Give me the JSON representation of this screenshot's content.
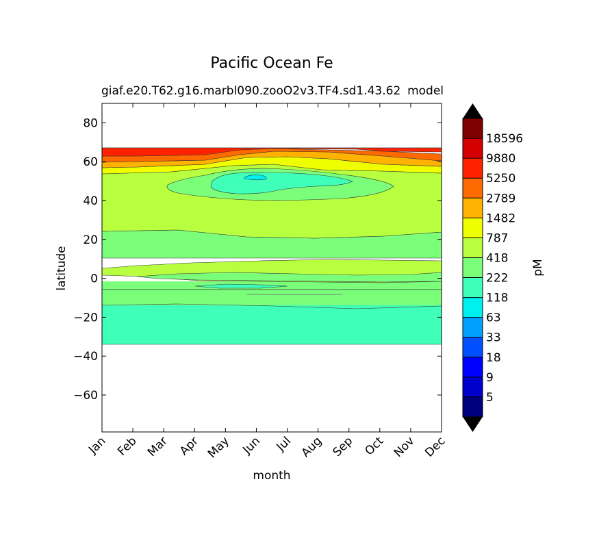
{
  "chart_data": {
    "type": "contour",
    "title": "Pacific Ocean Fe",
    "subtitle_left": "giaf.e20.T62.g16.marbl090.zooO2v3.TF4.sd1.43.62",
    "subtitle_right": "model",
    "xlabel": "month",
    "ylabel": "latitude",
    "x_categories": [
      "Jan",
      "Feb",
      "Mar",
      "Apr",
      "May",
      "Jun",
      "Jul",
      "Aug",
      "Sep",
      "Oct",
      "Nov",
      "Dec"
    ],
    "y_ticks": [
      80,
      60,
      40,
      20,
      0,
      -20,
      -40,
      -60
    ],
    "ylim": [
      -79,
      90
    ],
    "data_lat_range": [
      -34,
      67
    ],
    "colorbar": {
      "label": "pM",
      "tick_labels": [
        "5",
        "9",
        "18",
        "33",
        "63",
        "118",
        "222",
        "418",
        "787",
        "1482",
        "2789",
        "5250",
        "9880",
        "18596"
      ],
      "colors": [
        "#00007f",
        "#0000cd",
        "#0000ff",
        "#0050ff",
        "#00a0ff",
        "#00f0f0",
        "#40ffb8",
        "#7bff7b",
        "#b8ff40",
        "#f0ff00",
        "#ffb300",
        "#ff6a00",
        "#ff2200",
        "#d40000",
        "#7f0000"
      ],
      "extend_low_color": "#000000",
      "extend_high_color": "#000000"
    },
    "bands": [
      {
        "lat_min": -34,
        "lat_max": -14,
        "level": "118-222"
      },
      {
        "lat_min": -14,
        "lat_max": -3,
        "level": "222-418"
      },
      {
        "lat_min": -6,
        "lat_max": -4,
        "level": "118-222"
      },
      {
        "lat_min": -3,
        "lat_max": 8,
        "level": "418-787"
      },
      {
        "lat_min": 8,
        "lat_max": 25,
        "level": "222-418"
      },
      {
        "lat_min": 25,
        "lat_max": 54,
        "level": "418-787"
      },
      {
        "lat_min": 42,
        "lat_max": 53,
        "level": "222-418"
      },
      {
        "lat_min": 46,
        "lat_max": 54,
        "level": "118-222"
      },
      {
        "lat_min": 50,
        "lat_max": 52,
        "level": "63-118"
      },
      {
        "lat_min": 54,
        "lat_max": 57,
        "level": "787-1482"
      },
      {
        "lat_min": 57,
        "lat_max": 61,
        "level": "1482-2789"
      },
      {
        "lat_min": 61,
        "lat_max": 64,
        "level": "2789-5250"
      },
      {
        "lat_min": 64,
        "lat_max": 67,
        "level": "5250-9880"
      }
    ]
  }
}
